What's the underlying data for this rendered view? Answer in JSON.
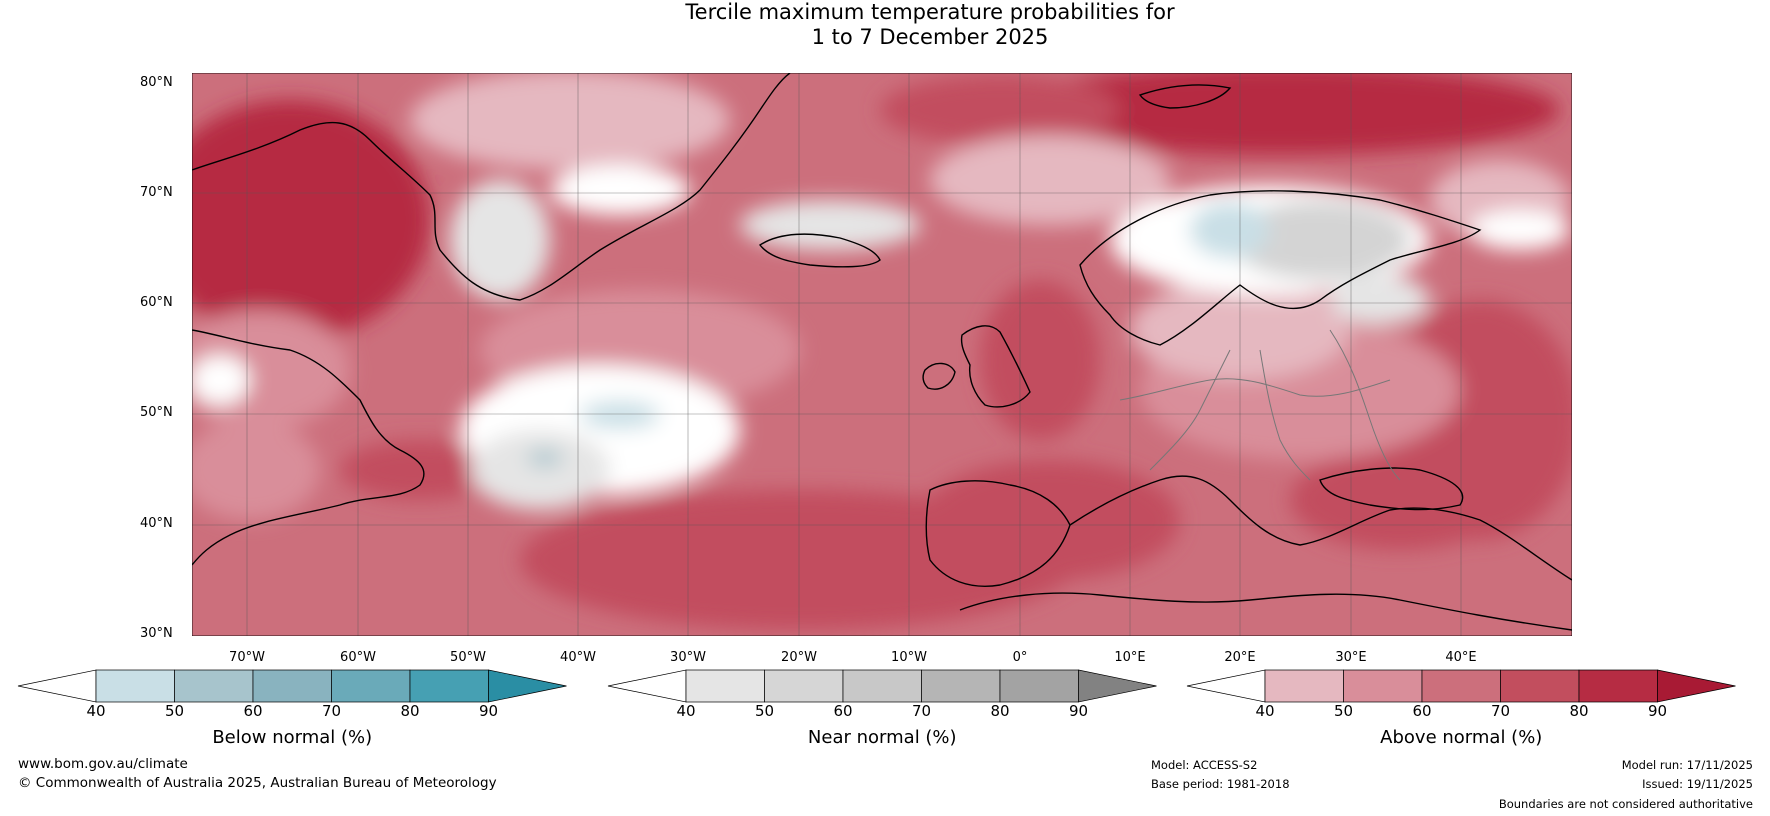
{
  "title": {
    "line1": "Tercile maximum temperature probabilities for",
    "line2": "1 to 7 December 2025"
  },
  "map": {
    "lat_labels": [
      "80°N",
      "70°N",
      "60°N",
      "50°N",
      "40°N",
      "30°N"
    ],
    "lon_labels": [
      "70°W",
      "60°W",
      "50°W",
      "40°W",
      "30°W",
      "20°W",
      "10°W",
      "0°",
      "10°E",
      "20°E",
      "30°E",
      "40°E"
    ],
    "colors": {
      "above": [
        "#e5b8c0",
        "#d98e9a",
        "#cc6f7c",
        "#c24e5e",
        "#b62c43",
        "#a81a34"
      ],
      "near": [
        "#ffffff",
        "#e5e5e5",
        "#d4d4d4"
      ],
      "below": [
        "#c9dfe6",
        "#a7c4cc"
      ]
    }
  },
  "colorbars": [
    {
      "name": "below",
      "title": "Below normal (%)",
      "ticks": [
        "40",
        "50",
        "60",
        "70",
        "80",
        "90"
      ],
      "colors": [
        "#ffffff",
        "#c9dfe6",
        "#a7c4cc",
        "#89b3bf",
        "#6aaab9",
        "#46a0b3",
        "#2a8ea4"
      ]
    },
    {
      "name": "near",
      "title": "Near normal (%)",
      "ticks": [
        "40",
        "50",
        "60",
        "70",
        "80",
        "90"
      ],
      "colors": [
        "#ffffff",
        "#e5e5e5",
        "#d6d6d6",
        "#c8c8c8",
        "#b5b5b5",
        "#a3a3a3",
        "#828282"
      ]
    },
    {
      "name": "above",
      "title": "Above normal (%)",
      "ticks": [
        "40",
        "50",
        "60",
        "70",
        "80",
        "90"
      ],
      "colors": [
        "#ffffff",
        "#e5b8c0",
        "#d98e9a",
        "#cc6f7c",
        "#c24e5e",
        "#b62c43",
        "#a81a34"
      ]
    }
  ],
  "footer": {
    "website": "www.bom.gov.au/climate",
    "copyright": "© Commonwealth of Australia 2025, Australian Bureau of Meteorology",
    "model": "Model: ACCESS-S2",
    "base_period": "Base period: 1981-2018",
    "model_run": "Model run: 17/11/2025",
    "issued": "Issued: 19/11/2025",
    "disclaimer": "Boundaries are not considered authoritative"
  }
}
